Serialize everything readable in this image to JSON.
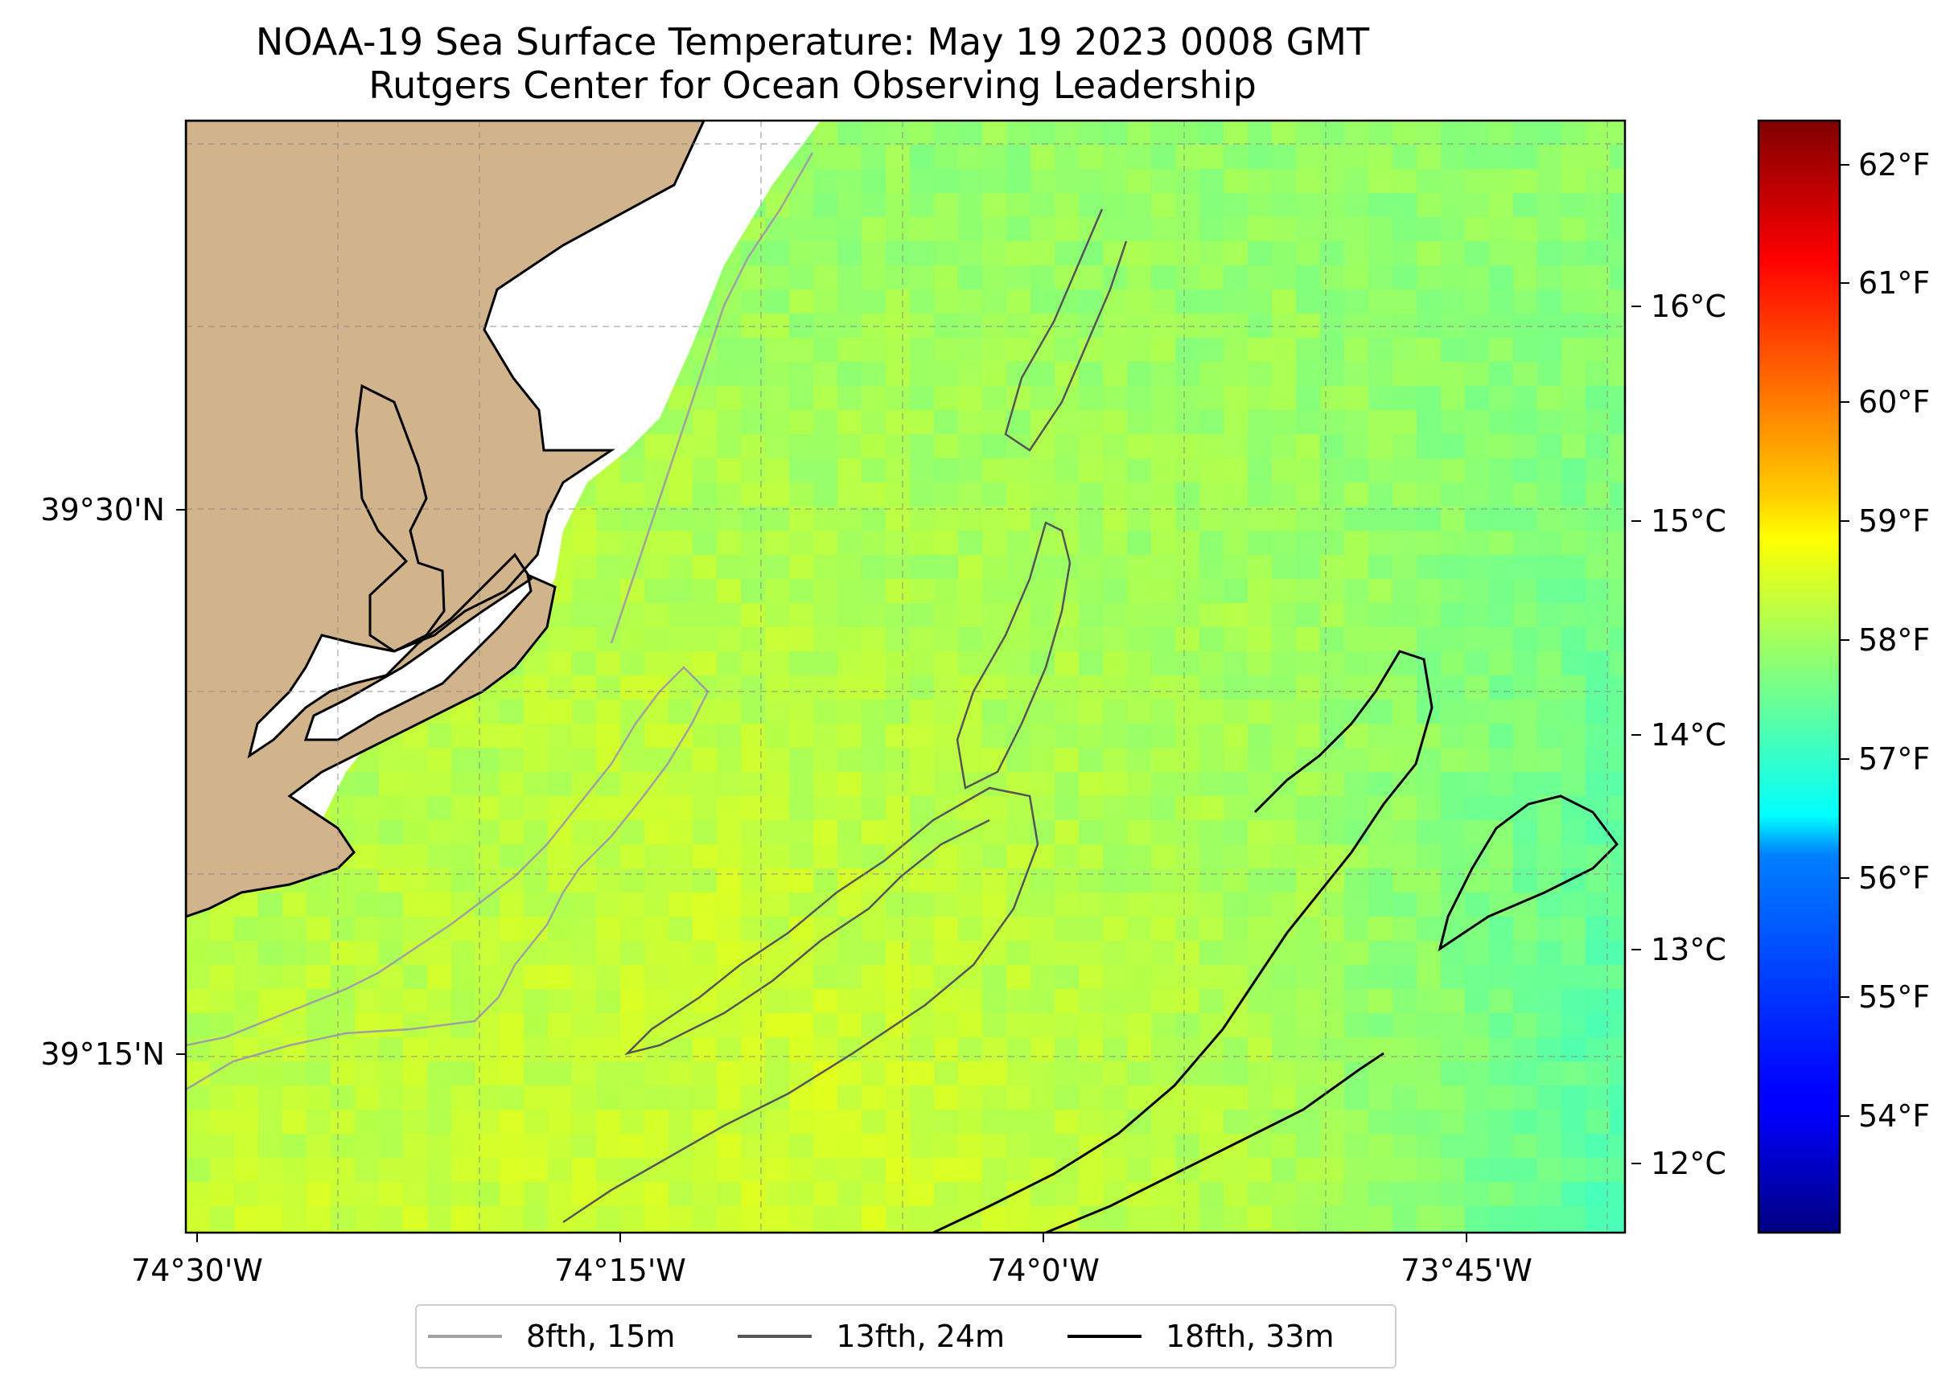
{
  "title_line1": "NOAA-19 Sea Surface Temperature: May 19 2023 0008 GMT",
  "title_line2": "Rutgers Center for Ocean Observing Leadership",
  "map": {
    "lon_labels": [
      "74°30'W",
      "74°15'W",
      "74°0'W",
      "73°45'W"
    ],
    "lat_labels": [
      "39°30'N",
      "39°15'N"
    ],
    "land_color": "#d2b48c",
    "colormap": "jet",
    "temperature_range_f": [
      53.2,
      62.4
    ],
    "temperature_range_c": [
      11.8,
      16.9
    ]
  },
  "colorbar": {
    "fahrenheit_ticks": [
      "62°F",
      "61°F",
      "60°F",
      "59°F",
      "58°F",
      "57°F",
      "56°F",
      "55°F",
      "54°F"
    ],
    "celsius_ticks": [
      "16°C",
      "15°C",
      "14°C",
      "13°C",
      "12°C"
    ]
  },
  "legend": {
    "items": [
      {
        "label": "8fth, 15m",
        "color": "#a0a0a0"
      },
      {
        "label": "13fth, 24m",
        "color": "#555555"
      },
      {
        "label": "18fth, 33m",
        "color": "#000000"
      }
    ]
  }
}
